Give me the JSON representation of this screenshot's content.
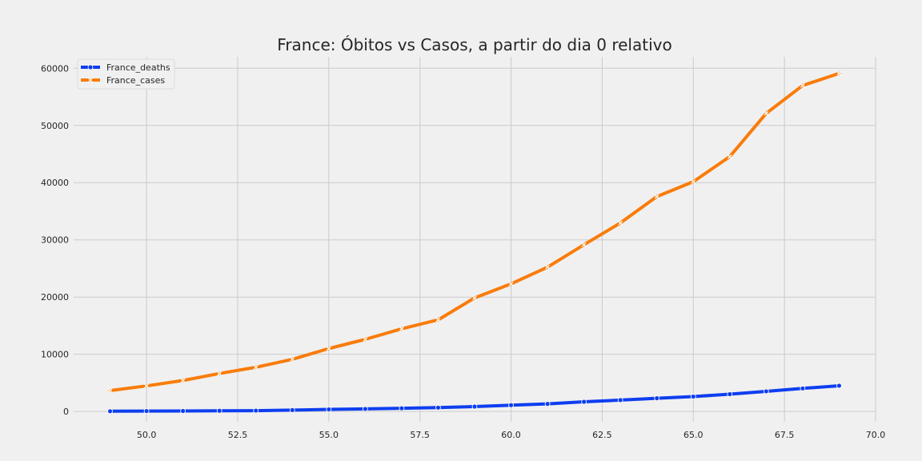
{
  "chart_data": {
    "type": "line",
    "title": "France: Óbitos vs Casos, a partir do dia 0 relativo",
    "xlabel": "",
    "ylabel": "",
    "xlim": [
      48,
      70
    ],
    "ylim": [
      -1800,
      62000
    ],
    "x_ticks": [
      50,
      52.5,
      55,
      57.5,
      60,
      62.5,
      65,
      67.5,
      70
    ],
    "x_tick_labels": [
      "50.0",
      "52.5",
      "55.0",
      "57.5",
      "60.0",
      "62.5",
      "65.0",
      "67.5",
      "70.0"
    ],
    "y_ticks": [
      0,
      10000,
      20000,
      30000,
      40000,
      50000,
      60000
    ],
    "y_tick_labels": [
      "0",
      "10000",
      "20000",
      "30000",
      "40000",
      "50000",
      "60000"
    ],
    "grid": true,
    "legend_position": "top-left",
    "x": [
      49,
      50,
      51,
      52,
      53,
      54,
      55,
      56,
      57,
      58,
      59,
      60,
      61,
      62,
      63,
      64,
      65,
      66,
      67,
      68,
      69
    ],
    "series": [
      {
        "name": "France_deaths",
        "color": "#0d3ef0",
        "marker": "circle",
        "values": [
          48,
          79,
          91,
          127,
          148,
          243,
          372,
          450,
          562,
          674,
          860,
          1100,
          1331,
          1696,
          1995,
          2314,
          2606,
          3024,
          3523,
          4032,
          4503
        ]
      },
      {
        "name": "France_cases",
        "color": "#f97c0a",
        "marker": "x",
        "values": [
          3661,
          4469,
          5423,
          6633,
          7730,
          9134,
          10995,
          12612,
          14459,
          16018,
          19856,
          22304,
          25233,
          29155,
          32964,
          37575,
          40174,
          44550,
          52128,
          56989,
          59105
        ]
      }
    ]
  }
}
